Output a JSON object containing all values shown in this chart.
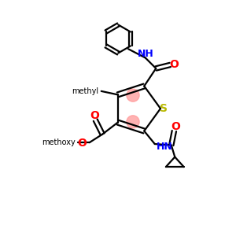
{
  "bg_color": "#ffffff",
  "bond_color": "#000000",
  "N_color": "#0000ff",
  "O_color": "#ff0000",
  "S_color": "#b8b800",
  "highlight_color": "#ff9999",
  "lw": 1.6,
  "fs": 9,
  "fig_size": [
    3.0,
    3.0
  ],
  "dpi": 100,
  "xlim": [
    0,
    10
  ],
  "ylim": [
    0,
    10
  ]
}
